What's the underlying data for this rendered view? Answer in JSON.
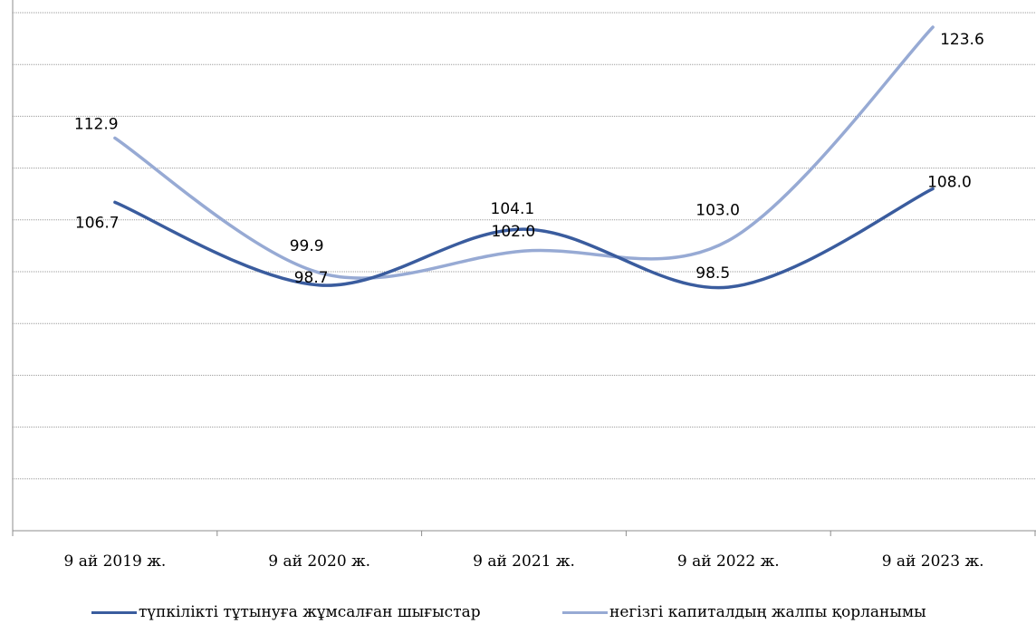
{
  "chart_data": {
    "type": "line",
    "categories": [
      "9 ай 2019 ж.",
      "9 ай 2020 ж.",
      "9 ай 2021 ж.",
      "9 ай 2022 ж.",
      "9 ай 2023 ж."
    ],
    "series": [
      {
        "name": "түпкілікті тұтынуға жұмсалған шығыстар",
        "values": [
          106.7,
          98.7,
          104.1,
          98.5,
          108.0
        ],
        "labels": [
          "106.7",
          "98.7",
          "104.1",
          "98.5",
          "108.0"
        ],
        "color": "#3A5C9E"
      },
      {
        "name": "негізгі капиталдың жалпы қорланымы",
        "values": [
          112.9,
          99.9,
          102.0,
          103.0,
          123.6
        ],
        "labels": [
          "112.9",
          "99.9",
          "102.0",
          "103.0",
          "123.6"
        ],
        "color": "#97AAD4"
      }
    ],
    "ylim": [
      75,
      125
    ],
    "gridlines": true,
    "smooth": true,
    "legend": "bottom",
    "gridline_color": "#9a9a9a"
  }
}
